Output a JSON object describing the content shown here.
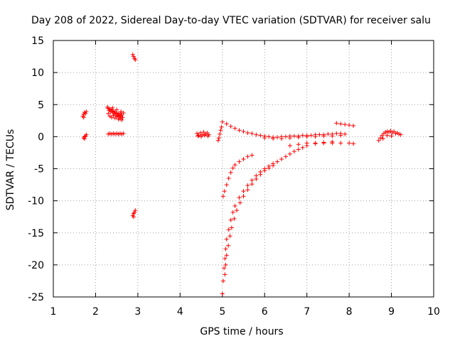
{
  "chart_data": {
    "type": "scatter",
    "title": "Day 208 of 2022, Sidereal Day-to-day VTEC variation (SDTVAR) for receiver salu",
    "xlabel": "GPS time / hours",
    "ylabel": "SDTVAR / TECUs",
    "xlim": [
      1,
      10
    ],
    "ylim": [
      -25,
      15
    ],
    "xticks": [
      "1",
      "2",
      "3",
      "4",
      "5",
      "6",
      "7",
      "8",
      "9",
      "10"
    ],
    "yticks": [
      "15",
      "10",
      "5",
      "0",
      "-5",
      "-10",
      "-15",
      "-20",
      "-25"
    ],
    "grid": true,
    "marker": "plus",
    "color": "#ff0000",
    "series": [
      {
        "name": "cluster-1.7-upper",
        "points": [
          [
            1.7,
            3.2
          ],
          [
            1.72,
            3.5
          ],
          [
            1.74,
            3.8
          ],
          [
            1.76,
            3.6
          ],
          [
            1.78,
            3.9
          ],
          [
            1.72,
            3.0
          ]
        ]
      },
      {
        "name": "cluster-1.7-lower",
        "points": [
          [
            1.72,
            -0.2
          ],
          [
            1.74,
            0.0
          ],
          [
            1.76,
            0.1
          ],
          [
            1.78,
            0.3
          ],
          [
            1.74,
            -0.3
          ]
        ]
      },
      {
        "name": "cluster-2.3-upper",
        "points": [
          [
            2.28,
            4.6
          ],
          [
            2.3,
            4.4
          ],
          [
            2.32,
            4.1
          ],
          [
            2.34,
            4.3
          ],
          [
            2.36,
            3.9
          ],
          [
            2.38,
            4.2
          ],
          [
            2.4,
            3.8
          ],
          [
            2.42,
            4.0
          ],
          [
            2.44,
            3.6
          ],
          [
            2.46,
            3.9
          ],
          [
            2.48,
            3.5
          ],
          [
            2.5,
            3.7
          ],
          [
            2.52,
            3.3
          ],
          [
            2.54,
            3.6
          ],
          [
            2.56,
            3.2
          ],
          [
            2.58,
            3.5
          ],
          [
            2.6,
            3.1
          ],
          [
            2.62,
            3.4
          ],
          [
            2.64,
            3.0
          ],
          [
            2.3,
            3.6
          ],
          [
            2.34,
            3.2
          ],
          [
            2.38,
            3.0
          ],
          [
            2.42,
            3.3
          ],
          [
            2.46,
            2.9
          ],
          [
            2.5,
            3.1
          ],
          [
            2.54,
            2.7
          ],
          [
            2.58,
            2.8
          ],
          [
            2.62,
            2.6
          ],
          [
            2.4,
            4.5
          ],
          [
            2.5,
            4.2
          ],
          [
            2.6,
            3.9
          ],
          [
            2.66,
            3.7
          ]
        ]
      },
      {
        "name": "cluster-2.3-lower",
        "points": [
          [
            2.3,
            0.4
          ],
          [
            2.34,
            0.5
          ],
          [
            2.38,
            0.4
          ],
          [
            2.42,
            0.5
          ],
          [
            2.46,
            0.4
          ],
          [
            2.5,
            0.5
          ],
          [
            2.54,
            0.4
          ],
          [
            2.58,
            0.5
          ],
          [
            2.62,
            0.4
          ],
          [
            2.66,
            0.5
          ]
        ]
      },
      {
        "name": "cluster-2.9-top",
        "points": [
          [
            2.88,
            12.8
          ],
          [
            2.9,
            12.5
          ],
          [
            2.92,
            12.2
          ],
          [
            2.94,
            12.0
          ]
        ]
      },
      {
        "name": "cluster-2.9-bottom",
        "points": [
          [
            2.88,
            -12.3
          ],
          [
            2.9,
            -12.0
          ],
          [
            2.92,
            -11.8
          ],
          [
            2.94,
            -11.5
          ],
          [
            2.9,
            -12.5
          ]
        ]
      },
      {
        "name": "cluster-4.5",
        "points": [
          [
            4.4,
            0.5
          ],
          [
            4.44,
            0.2
          ],
          [
            4.48,
            0.6
          ],
          [
            4.52,
            0.3
          ],
          [
            4.56,
            0.7
          ],
          [
            4.6,
            0.4
          ],
          [
            4.64,
            0.6
          ],
          [
            4.68,
            0.3
          ],
          [
            4.42,
            0.1
          ],
          [
            4.5,
            0.0
          ],
          [
            4.58,
            0.2
          ],
          [
            4.66,
            0.1
          ]
        ]
      },
      {
        "name": "cluster-4.9",
        "points": [
          [
            4.9,
            -0.6
          ],
          [
            4.92,
            -0.2
          ],
          [
            4.94,
            0.4
          ],
          [
            4.96,
            1.0
          ],
          [
            4.98,
            1.5
          ]
        ]
      },
      {
        "name": "arc-upper",
        "points": [
          [
            5.0,
            2.3
          ],
          [
            5.1,
            2.0
          ],
          [
            5.2,
            1.6
          ],
          [
            5.3,
            1.3
          ],
          [
            5.4,
            1.0
          ],
          [
            5.5,
            0.8
          ],
          [
            5.6,
            0.6
          ],
          [
            5.7,
            0.5
          ],
          [
            5.8,
            0.3
          ],
          [
            5.9,
            0.2
          ],
          [
            6.0,
            0.1
          ],
          [
            6.1,
            0.0
          ],
          [
            6.2,
            -0.1
          ],
          [
            6.3,
            -0.1
          ],
          [
            6.4,
            0.0
          ],
          [
            6.5,
            0.0
          ],
          [
            6.6,
            0.1
          ],
          [
            6.7,
            0.1
          ],
          [
            6.8,
            0.1
          ],
          [
            6.9,
            0.2
          ],
          [
            7.0,
            0.2
          ],
          [
            7.1,
            0.2
          ],
          [
            7.2,
            0.3
          ],
          [
            7.3,
            0.3
          ],
          [
            7.4,
            0.3
          ],
          [
            7.5,
            0.4
          ],
          [
            7.6,
            0.4
          ],
          [
            7.7,
            0.5
          ],
          [
            7.8,
            0.5
          ],
          [
            7.9,
            0.4
          ]
        ]
      },
      {
        "name": "arc-upper-band",
        "points": [
          [
            6.0,
            -0.2
          ],
          [
            6.2,
            -0.3
          ],
          [
            6.4,
            -0.3
          ],
          [
            6.6,
            -0.2
          ],
          [
            6.8,
            -0.1
          ],
          [
            7.0,
            0.0
          ],
          [
            7.2,
            0.0
          ],
          [
            7.4,
            0.1
          ],
          [
            7.6,
            0.1
          ],
          [
            7.8,
            0.2
          ]
        ]
      },
      {
        "name": "cluster-7.8-right",
        "points": [
          [
            7.7,
            2.1
          ],
          [
            7.8,
            2.0
          ],
          [
            7.9,
            1.9
          ],
          [
            8.0,
            1.8
          ],
          [
            8.1,
            1.7
          ]
        ]
      },
      {
        "name": "arc-lower-right",
        "points": [
          [
            6.6,
            -1.4
          ],
          [
            6.8,
            -1.2
          ],
          [
            7.0,
            -1.0
          ],
          [
            7.2,
            -1.0
          ],
          [
            7.4,
            -1.0
          ],
          [
            7.6,
            -1.0
          ],
          [
            7.8,
            -1.0
          ],
          [
            8.0,
            -1.0
          ],
          [
            8.1,
            -1.1
          ]
        ]
      },
      {
        "name": "curve-a",
        "points": [
          [
            5.02,
            -9.3
          ],
          [
            5.05,
            -8.5
          ],
          [
            5.1,
            -7.5
          ],
          [
            5.15,
            -6.5
          ],
          [
            5.2,
            -5.6
          ],
          [
            5.25,
            -4.9
          ],
          [
            5.3,
            -4.4
          ],
          [
            5.4,
            -3.9
          ],
          [
            5.5,
            -3.5
          ],
          [
            5.6,
            -3.1
          ],
          [
            5.7,
            -2.9
          ]
        ]
      },
      {
        "name": "curve-b",
        "points": [
          [
            5.0,
            -24.5
          ],
          [
            5.02,
            -22.5
          ],
          [
            5.04,
            -20.5
          ],
          [
            5.06,
            -19.0
          ],
          [
            5.08,
            -17.5
          ],
          [
            5.1,
            -16.0
          ],
          [
            5.15,
            -14.5
          ],
          [
            5.2,
            -13.0
          ],
          [
            5.25,
            -11.8
          ],
          [
            5.3,
            -10.8
          ],
          [
            5.4,
            -9.5
          ],
          [
            5.5,
            -8.5
          ],
          [
            5.6,
            -7.6
          ],
          [
            5.7,
            -6.8
          ],
          [
            5.8,
            -6.1
          ],
          [
            5.9,
            -5.5
          ],
          [
            6.0,
            -5.0
          ],
          [
            6.1,
            -4.6
          ],
          [
            6.2,
            -4.2
          ],
          [
            6.3,
            -3.9
          ],
          [
            6.4,
            -3.5
          ],
          [
            6.5,
            -3.1
          ],
          [
            6.6,
            -2.7
          ],
          [
            6.7,
            -2.3
          ],
          [
            6.8,
            -2.0
          ],
          [
            6.9,
            -1.7
          ],
          [
            7.0,
            -1.4
          ],
          [
            7.2,
            -1.1
          ],
          [
            7.4,
            -0.9
          ],
          [
            7.6,
            -0.8
          ]
        ]
      },
      {
        "name": "curve-c",
        "points": [
          [
            5.06,
            -21.5
          ],
          [
            5.08,
            -20.0
          ],
          [
            5.1,
            -18.5
          ],
          [
            5.14,
            -17.0
          ],
          [
            5.18,
            -15.5
          ],
          [
            5.22,
            -14.2
          ],
          [
            5.28,
            -12.8
          ],
          [
            5.34,
            -11.5
          ],
          [
            5.42,
            -10.3
          ],
          [
            5.5,
            -9.3
          ],
          [
            5.6,
            -8.3
          ],
          [
            5.7,
            -7.4
          ],
          [
            5.8,
            -6.6
          ],
          [
            5.9,
            -5.9
          ],
          [
            6.0,
            -5.3
          ],
          [
            6.1,
            -4.9
          ],
          [
            6.2,
            -4.5
          ]
        ]
      },
      {
        "name": "cluster-9.0",
        "points": [
          [
            8.7,
            -0.6
          ],
          [
            8.74,
            -0.2
          ],
          [
            8.78,
            0.2
          ],
          [
            8.82,
            0.5
          ],
          [
            8.86,
            0.7
          ],
          [
            8.9,
            0.8
          ],
          [
            8.94,
            0.7
          ],
          [
            8.98,
            0.9
          ],
          [
            9.02,
            0.6
          ],
          [
            9.06,
            0.8
          ],
          [
            9.1,
            0.5
          ],
          [
            9.14,
            0.6
          ],
          [
            9.18,
            0.4
          ],
          [
            9.22,
            0.3
          ],
          [
            8.8,
            -0.3
          ],
          [
            8.9,
            0.2
          ],
          [
            9.0,
            0.1
          ]
        ]
      }
    ]
  }
}
